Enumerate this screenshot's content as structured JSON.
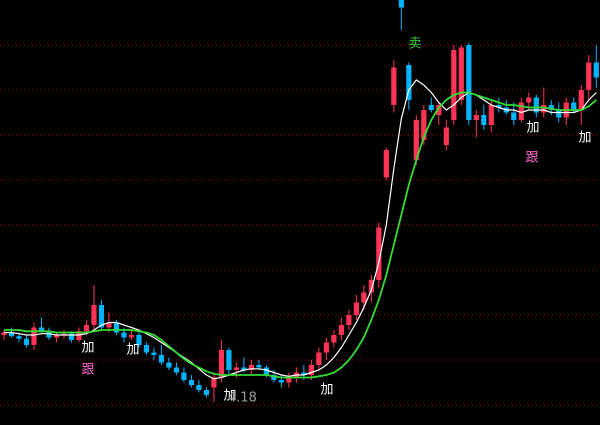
{
  "chart_data": {
    "type": "candlestick",
    "ylim": [
      4.0,
      7.4
    ],
    "gridlines": [
      4.16,
      4.52,
      4.88,
      5.24,
      5.6,
      5.96,
      6.32,
      6.68,
      7.04
    ],
    "up_color": "#ff3355",
    "down_color": "#00b4ff",
    "grid_color": "#b00000",
    "open": [
      4.72,
      4.74,
      4.71,
      4.69,
      4.64,
      4.78,
      4.75,
      4.7,
      4.72,
      4.73,
      4.68,
      4.75,
      4.8,
      4.96,
      4.78,
      4.82,
      4.74,
      4.7,
      4.72,
      4.64,
      4.58,
      4.56,
      4.5,
      4.46,
      4.42,
      4.36,
      4.32,
      4.28,
      4.3,
      4.38,
      4.6,
      4.44,
      4.46,
      4.44,
      4.48,
      4.46,
      4.4,
      4.36,
      4.34,
      4.38,
      4.42,
      4.4,
      4.48,
      4.58,
      4.66,
      4.72,
      4.8,
      4.88,
      4.98,
      5.06,
      5.16,
      5.98,
      6.56,
      7.4,
      6.88,
      6.12,
      6.28,
      6.56,
      6.48,
      6.24,
      6.44,
      6.6,
      7.04,
      6.44,
      6.48,
      6.4,
      6.56,
      6.54,
      6.5,
      6.44,
      6.58,
      6.62,
      6.5,
      6.56,
      6.52,
      6.46,
      6.58,
      6.52,
      6.68,
      6.9
    ],
    "high": [
      4.76,
      4.78,
      4.74,
      4.72,
      4.82,
      4.86,
      4.78,
      4.74,
      4.76,
      4.75,
      4.78,
      4.84,
      5.12,
      5.0,
      4.9,
      4.84,
      4.78,
      4.76,
      4.74,
      4.66,
      4.62,
      4.64,
      4.54,
      4.5,
      4.46,
      4.4,
      4.36,
      4.3,
      4.42,
      4.68,
      4.62,
      4.5,
      4.54,
      4.52,
      4.52,
      4.48,
      4.44,
      4.4,
      4.42,
      4.46,
      4.48,
      4.52,
      4.62,
      4.7,
      4.76,
      4.86,
      4.92,
      5.04,
      5.12,
      5.2,
      5.62,
      6.22,
      6.92,
      7.4,
      6.9,
      6.48,
      6.56,
      6.62,
      6.58,
      6.44,
      7.04,
      7.04,
      7.06,
      6.52,
      6.56,
      6.6,
      6.62,
      6.6,
      6.58,
      6.62,
      6.66,
      6.64,
      6.7,
      6.6,
      6.58,
      6.62,
      6.62,
      6.72,
      6.96,
      7.04
    ],
    "low": [
      4.68,
      4.7,
      4.66,
      4.62,
      4.6,
      4.74,
      4.68,
      4.66,
      4.69,
      4.66,
      4.66,
      4.72,
      4.76,
      4.76,
      4.74,
      4.72,
      4.66,
      4.68,
      4.62,
      4.56,
      4.52,
      4.48,
      4.44,
      4.4,
      4.34,
      4.3,
      4.26,
      4.22,
      4.18,
      4.34,
      4.4,
      4.38,
      4.42,
      4.4,
      4.44,
      4.38,
      4.34,
      4.3,
      4.3,
      4.34,
      4.36,
      4.36,
      4.44,
      4.52,
      4.62,
      4.68,
      4.76,
      4.84,
      4.92,
      4.98,
      5.1,
      5.96,
      6.5,
      7.16,
      6.52,
      6.08,
      6.24,
      6.5,
      6.4,
      6.2,
      6.4,
      6.56,
      6.4,
      6.3,
      6.36,
      6.34,
      6.5,
      6.48,
      6.4,
      6.42,
      6.52,
      6.46,
      6.46,
      6.48,
      6.42,
      6.4,
      6.5,
      6.4,
      6.6,
      6.7
    ],
    "close": [
      4.74,
      4.71,
      4.69,
      4.64,
      4.78,
      4.75,
      4.7,
      4.72,
      4.73,
      4.68,
      4.75,
      4.8,
      4.96,
      4.78,
      4.82,
      4.74,
      4.7,
      4.72,
      4.64,
      4.58,
      4.56,
      4.5,
      4.46,
      4.42,
      4.36,
      4.32,
      4.28,
      4.24,
      4.38,
      4.6,
      4.44,
      4.46,
      4.44,
      4.48,
      4.46,
      4.4,
      4.36,
      4.34,
      4.38,
      4.42,
      4.4,
      4.48,
      4.58,
      4.66,
      4.72,
      4.8,
      4.88,
      4.98,
      5.06,
      5.16,
      5.58,
      6.2,
      6.86,
      7.34,
      6.6,
      6.44,
      6.52,
      6.52,
      6.56,
      6.38,
      7.0,
      7.02,
      6.44,
      6.48,
      6.4,
      6.56,
      6.54,
      6.5,
      6.44,
      6.58,
      6.62,
      6.5,
      6.56,
      6.52,
      6.46,
      6.58,
      6.52,
      6.68,
      6.9,
      6.78
    ],
    "series": [
      {
        "color": "#ffffff",
        "values": [
          4.74,
          4.74,
          4.73,
          4.72,
          4.72,
          4.73,
          4.73,
          4.72,
          4.72,
          4.72,
          4.72,
          4.73,
          4.76,
          4.8,
          4.82,
          4.82,
          4.8,
          4.78,
          4.76,
          4.73,
          4.7,
          4.66,
          4.62,
          4.58,
          4.54,
          4.5,
          4.45,
          4.4,
          4.37,
          4.38,
          4.4,
          4.42,
          4.44,
          4.45,
          4.45,
          4.44,
          4.42,
          4.4,
          4.39,
          4.4,
          4.4,
          4.42,
          4.44,
          4.48,
          4.54,
          4.62,
          4.72,
          4.82,
          4.94,
          5.08,
          5.3,
          5.6,
          6.05,
          6.45,
          6.68,
          6.76,
          6.72,
          6.66,
          6.58,
          6.52,
          6.56,
          6.62,
          6.66,
          6.64,
          6.6,
          6.56,
          6.54,
          6.52,
          6.52,
          6.5,
          6.52,
          6.52,
          6.52,
          6.5,
          6.5,
          6.5,
          6.5,
          6.52,
          6.6,
          6.66
        ]
      },
      {
        "color": "#33dd33",
        "values": [
          4.76,
          4.76,
          4.76,
          4.75,
          4.75,
          4.75,
          4.75,
          4.74,
          4.74,
          4.74,
          4.74,
          4.74,
          4.75,
          4.76,
          4.76,
          4.76,
          4.76,
          4.76,
          4.75,
          4.74,
          4.72,
          4.68,
          4.63,
          4.58,
          4.53,
          4.49,
          4.46,
          4.43,
          4.41,
          4.4,
          4.4,
          4.4,
          4.4,
          4.4,
          4.4,
          4.4,
          4.39,
          4.38,
          4.38,
          4.38,
          4.38,
          4.38,
          4.39,
          4.4,
          4.42,
          4.46,
          4.52,
          4.6,
          4.7,
          4.84,
          5.0,
          5.2,
          5.44,
          5.68,
          5.92,
          6.12,
          6.3,
          6.44,
          6.54,
          6.6,
          6.64,
          6.66,
          6.66,
          6.64,
          6.62,
          6.6,
          6.58,
          6.56,
          6.56,
          6.55,
          6.54,
          6.54,
          6.54,
          6.53,
          6.52,
          6.52,
          6.52,
          6.52,
          6.55,
          6.6
        ]
      }
    ],
    "annotations": [
      {
        "text": "卖",
        "color": "#33cc33"
      },
      {
        "text": "加",
        "color": "#ffffff"
      },
      {
        "text": "加",
        "color": "#ffffff"
      },
      {
        "text": "加",
        "color": "#ffffff"
      },
      {
        "text": "加",
        "color": "#ffffff"
      },
      {
        "text": "加",
        "color": "#ffffff"
      },
      {
        "text": "加",
        "color": "#ffffff"
      },
      {
        "text": "跟",
        "color": "#ff66cc"
      },
      {
        "text": "跟",
        "color": "#ff66cc"
      }
    ]
  }
}
